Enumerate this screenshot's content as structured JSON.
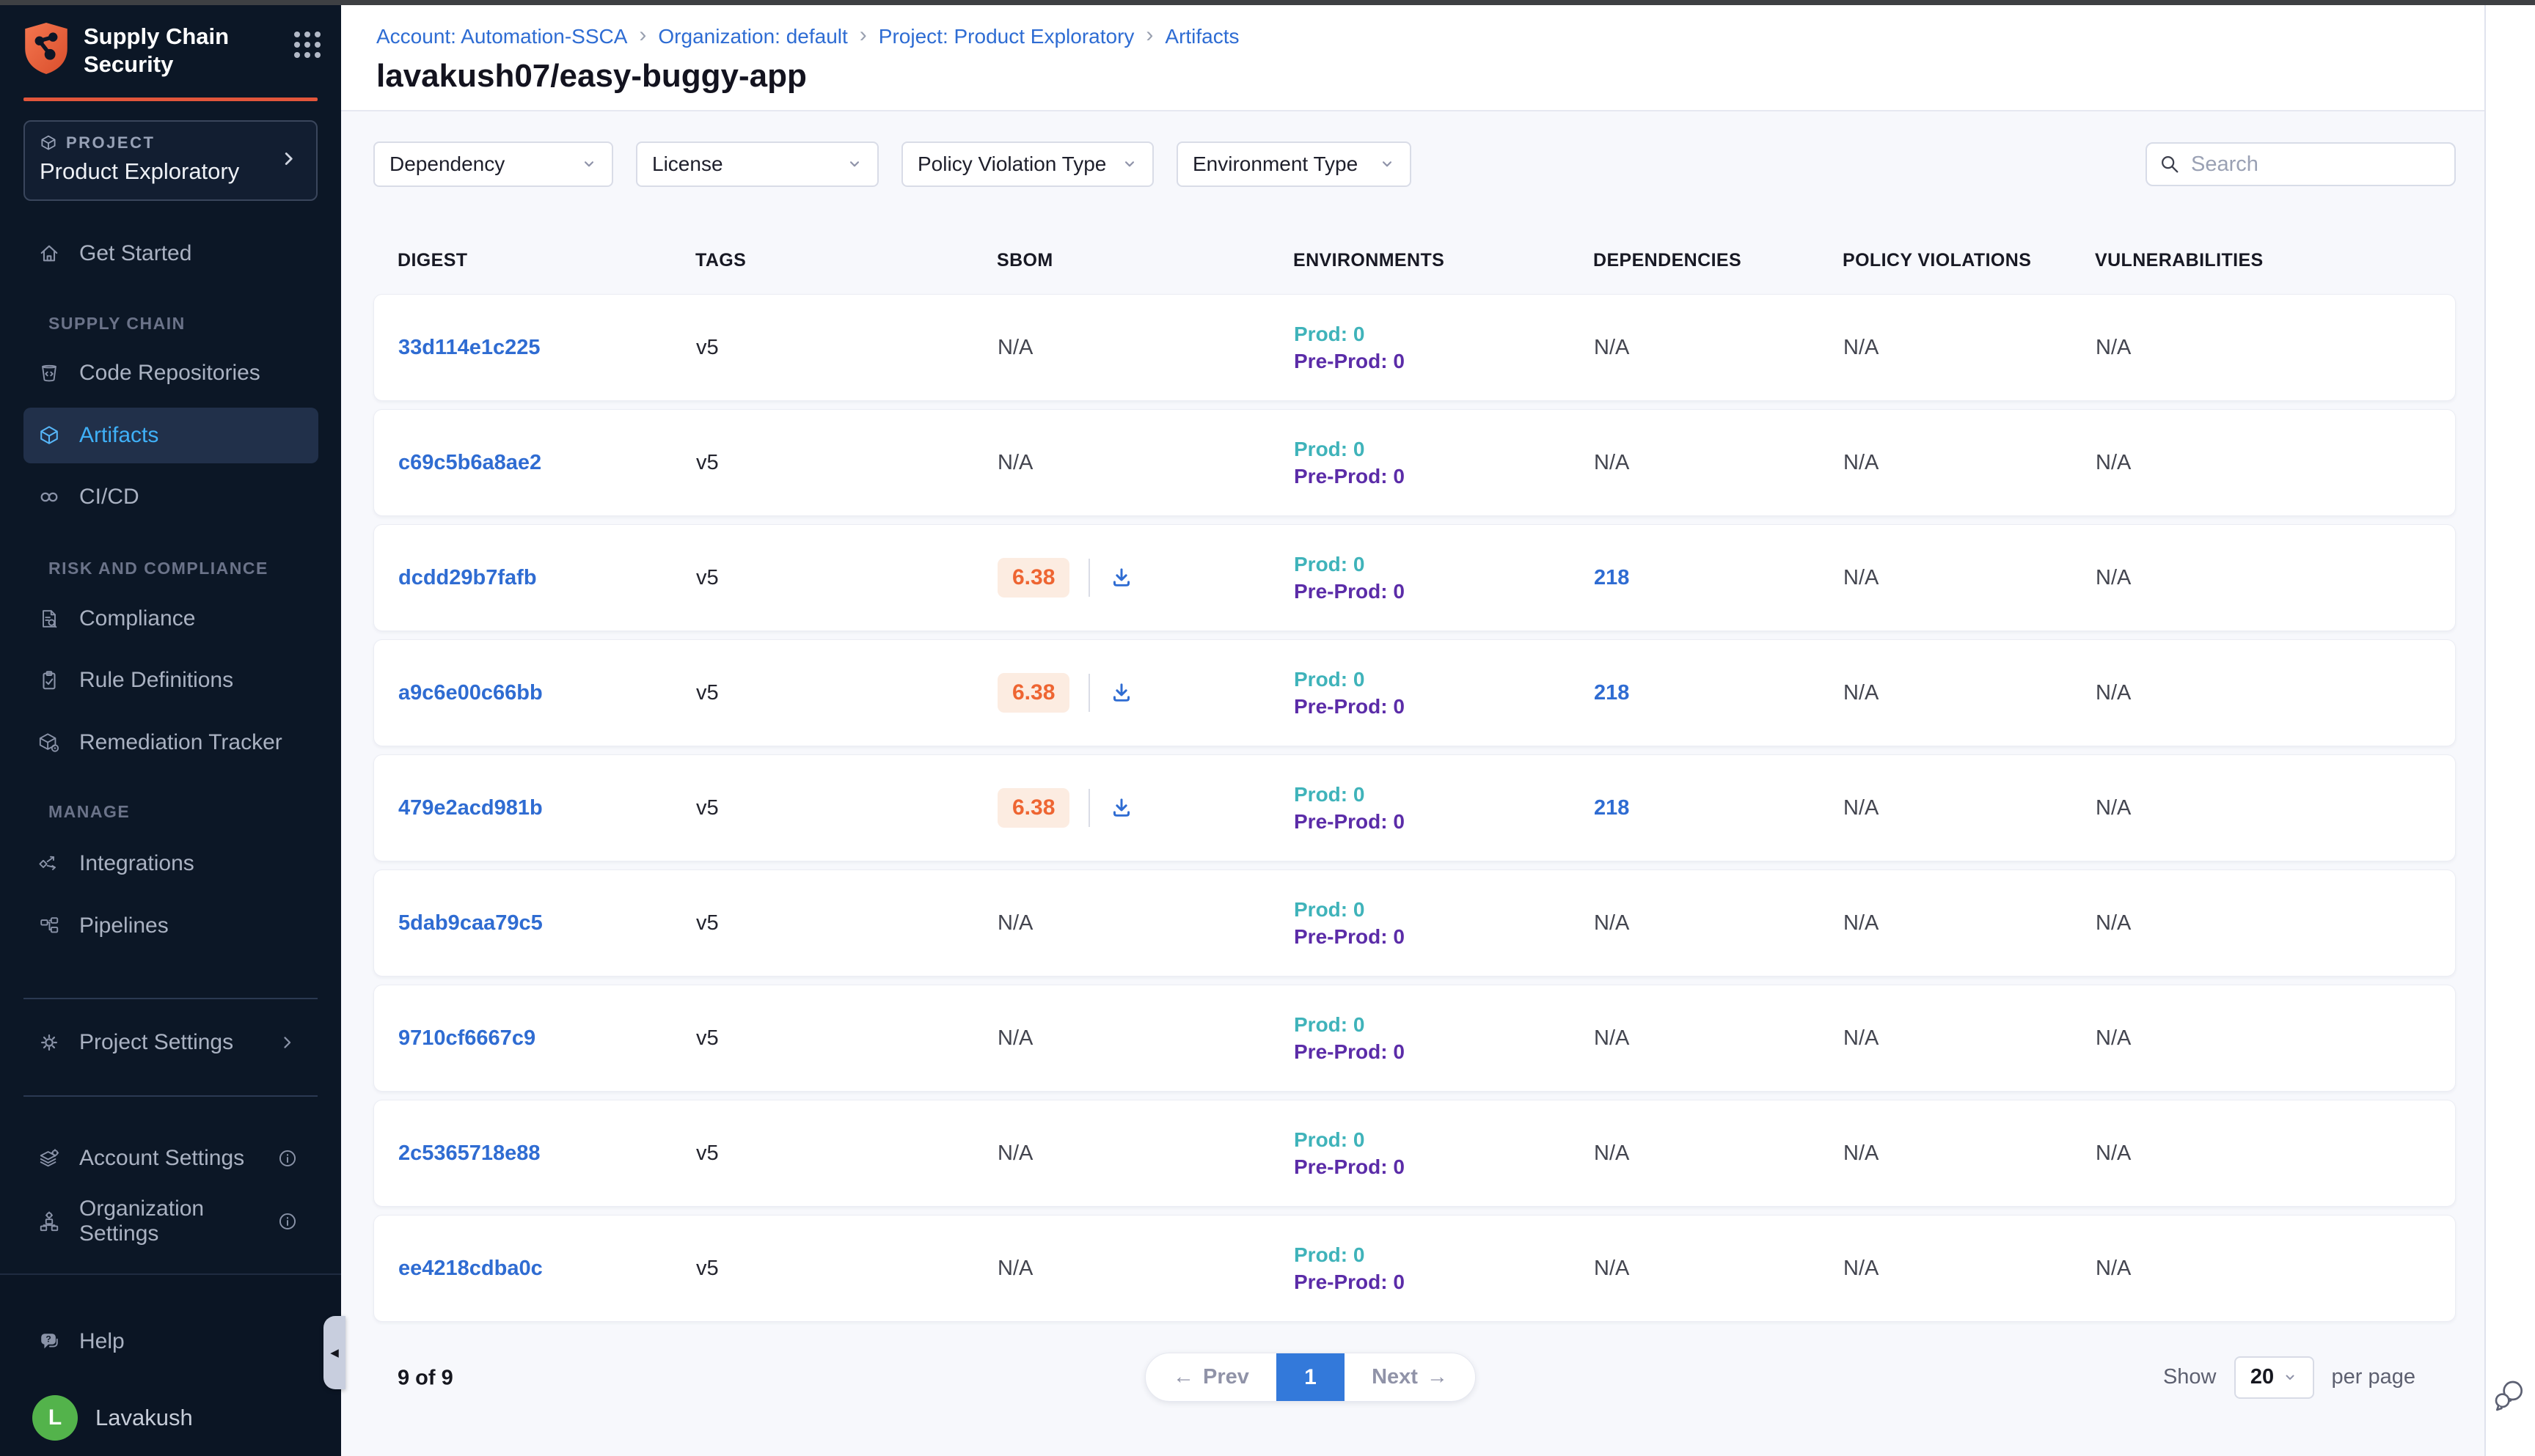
{
  "sidebar": {
    "product": {
      "line1": "Supply Chain",
      "line2": "Security"
    },
    "project_card": {
      "eyebrow": "PROJECT",
      "name": "Product Exploratory"
    },
    "get_started": "Get Started",
    "sections": [
      {
        "label": "SUPPLY CHAIN",
        "items": [
          {
            "label": "Code Repositories"
          },
          {
            "label": "Artifacts"
          },
          {
            "label": "CI/CD"
          }
        ]
      },
      {
        "label": "RISK AND COMPLIANCE",
        "items": [
          {
            "label": "Compliance"
          },
          {
            "label": "Rule Definitions"
          },
          {
            "label": "Remediation Tracker"
          }
        ]
      },
      {
        "label": "MANAGE",
        "items": [
          {
            "label": "Integrations"
          },
          {
            "label": "Pipelines"
          }
        ]
      }
    ],
    "project_settings": "Project Settings",
    "account_settings": "Account Settings",
    "organization_settings": "Organization Settings",
    "help": "Help",
    "user_name": "Lavakush",
    "user_initial": "L"
  },
  "breadcrumb": [
    "Account: Automation-SSCA",
    "Organization: default",
    "Project: Product Exploratory",
    "Artifacts"
  ],
  "page_title": "lavakush07/easy-buggy-app",
  "filters": {
    "dependency": "Dependency",
    "license": "License",
    "policy_violation_type": "Policy Violation Type",
    "environment_type": "Environment Type"
  },
  "search": {
    "placeholder": "Search"
  },
  "table": {
    "columns": [
      "DIGEST",
      "TAGS",
      "SBOM",
      "ENVIRONMENTS",
      "DEPENDENCIES",
      "POLICY VIOLATIONS",
      "VULNERABILITIES"
    ],
    "rows": [
      {
        "digest": "33d114e1c225",
        "tags": "v5",
        "sbom": "N/A",
        "sbom_is_score": false,
        "environments": {
          "prod": "Prod: 0",
          "preprod": "Pre-Prod: 0"
        },
        "dependencies": "N/A",
        "dependencies_is_link": false,
        "policy_violations": "N/A",
        "vulnerabilities": "N/A"
      },
      {
        "digest": "c69c5b6a8ae2",
        "tags": "v5",
        "sbom": "N/A",
        "sbom_is_score": false,
        "environments": {
          "prod": "Prod: 0",
          "preprod": "Pre-Prod: 0"
        },
        "dependencies": "N/A",
        "dependencies_is_link": false,
        "policy_violations": "N/A",
        "vulnerabilities": "N/A"
      },
      {
        "digest": "dcdd29b7fafb",
        "tags": "v5",
        "sbom": "6.38",
        "sbom_is_score": true,
        "environments": {
          "prod": "Prod: 0",
          "preprod": "Pre-Prod: 0"
        },
        "dependencies": "218",
        "dependencies_is_link": true,
        "policy_violations": "N/A",
        "vulnerabilities": "N/A"
      },
      {
        "digest": "a9c6e00c66bb",
        "tags": "v5",
        "sbom": "6.38",
        "sbom_is_score": true,
        "environments": {
          "prod": "Prod: 0",
          "preprod": "Pre-Prod: 0"
        },
        "dependencies": "218",
        "dependencies_is_link": true,
        "policy_violations": "N/A",
        "vulnerabilities": "N/A"
      },
      {
        "digest": "479e2acd981b",
        "tags": "v5",
        "sbom": "6.38",
        "sbom_is_score": true,
        "environments": {
          "prod": "Prod: 0",
          "preprod": "Pre-Prod: 0"
        },
        "dependencies": "218",
        "dependencies_is_link": true,
        "policy_violations": "N/A",
        "vulnerabilities": "N/A"
      },
      {
        "digest": "5dab9caa79c5",
        "tags": "v5",
        "sbom": "N/A",
        "sbom_is_score": false,
        "environments": {
          "prod": "Prod: 0",
          "preprod": "Pre-Prod: 0"
        },
        "dependencies": "N/A",
        "dependencies_is_link": false,
        "policy_violations": "N/A",
        "vulnerabilities": "N/A"
      },
      {
        "digest": "9710cf6667c9",
        "tags": "v5",
        "sbom": "N/A",
        "sbom_is_score": false,
        "environments": {
          "prod": "Prod: 0",
          "preprod": "Pre-Prod: 0"
        },
        "dependencies": "N/A",
        "dependencies_is_link": false,
        "policy_violations": "N/A",
        "vulnerabilities": "N/A"
      },
      {
        "digest": "2c5365718e88",
        "tags": "v5",
        "sbom": "N/A",
        "sbom_is_score": false,
        "environments": {
          "prod": "Prod: 0",
          "preprod": "Pre-Prod: 0"
        },
        "dependencies": "N/A",
        "dependencies_is_link": false,
        "policy_violations": "N/A",
        "vulnerabilities": "N/A"
      },
      {
        "digest": "ee4218cdba0c",
        "tags": "v5",
        "sbom": "N/A",
        "sbom_is_score": false,
        "environments": {
          "prod": "Prod: 0",
          "preprod": "Pre-Prod: 0"
        },
        "dependencies": "N/A",
        "dependencies_is_link": false,
        "policy_violations": "N/A",
        "vulnerabilities": "N/A"
      }
    ]
  },
  "pagination": {
    "count": "9 of 9",
    "prev": "Prev",
    "page": "1",
    "next": "Next",
    "show_label": "Show",
    "per_page_value": "20",
    "per_page_label": "per page"
  },
  "colors": {
    "accent_orange": "#e2563b",
    "link_blue": "#2f6cd2",
    "active_nav_blue": "#3fb0f7",
    "prod_teal": "#3fb3ba",
    "preprod_purple": "#5b2ca8",
    "score_orange": "#ee6532",
    "score_badge_bg": "#fcece1",
    "page_button_blue": "#3379da",
    "avatar_green": "#53b34b"
  }
}
